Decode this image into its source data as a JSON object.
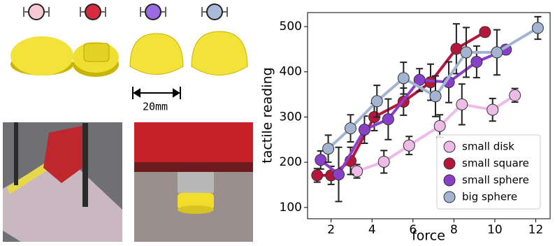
{
  "scale_label": "20mm",
  "chart_data": {
    "type": "line",
    "x_label": "force",
    "y_label": "tactile reading",
    "xlim": [
      0.85,
      12.7
    ],
    "xticks": [
      2,
      4,
      6,
      8,
      10,
      12
    ],
    "ylim": [
      75,
      531
    ],
    "yticks": [
      100,
      200,
      300,
      400,
      500
    ],
    "legend": "lower right",
    "series": [
      {
        "name": "small disk",
        "color": "#eebbe8",
        "x": [
          3.26,
          4.58,
          5.81,
          7.31,
          8.39,
          9.89,
          10.98
        ],
        "values": [
          180,
          201,
          237,
          280,
          328,
          316,
          348
        ],
        "errors": [
          15,
          25,
          20,
          25,
          45,
          25,
          15
        ]
      },
      {
        "name": "small square",
        "color": "#b5173c",
        "x": [
          1.32,
          2,
          2.95,
          4.11,
          5.54,
          6.86,
          8.12,
          9.52
        ],
        "values": [
          171,
          171,
          203,
          300,
          334,
          377,
          451,
          488
        ],
        "errors": [
          15,
          20,
          30,
          30,
          30,
          40,
          55,
          10
        ]
      },
      {
        "name": "small sphere",
        "color": "#8a3fc8",
        "x": [
          1.49,
          2.37,
          3.63,
          4.79,
          6.32,
          7.75,
          9.11,
          10.54
        ],
        "values": [
          205,
          173,
          272,
          295,
          382,
          377,
          422,
          449
        ],
        "errors": [
          20,
          60,
          30,
          45,
          25,
          45,
          35,
          10
        ]
      },
      {
        "name": "big sphere",
        "color": "#a2b4d2",
        "x": [
          1.86,
          2.95,
          4.24,
          5.54,
          7.1,
          8.6,
          10.1,
          12.1
        ],
        "values": [
          230,
          275,
          335,
          386,
          346,
          443,
          443,
          497
        ],
        "errors": [
          30,
          30,
          35,
          35,
          45,
          55,
          50,
          25
        ]
      }
    ]
  }
}
